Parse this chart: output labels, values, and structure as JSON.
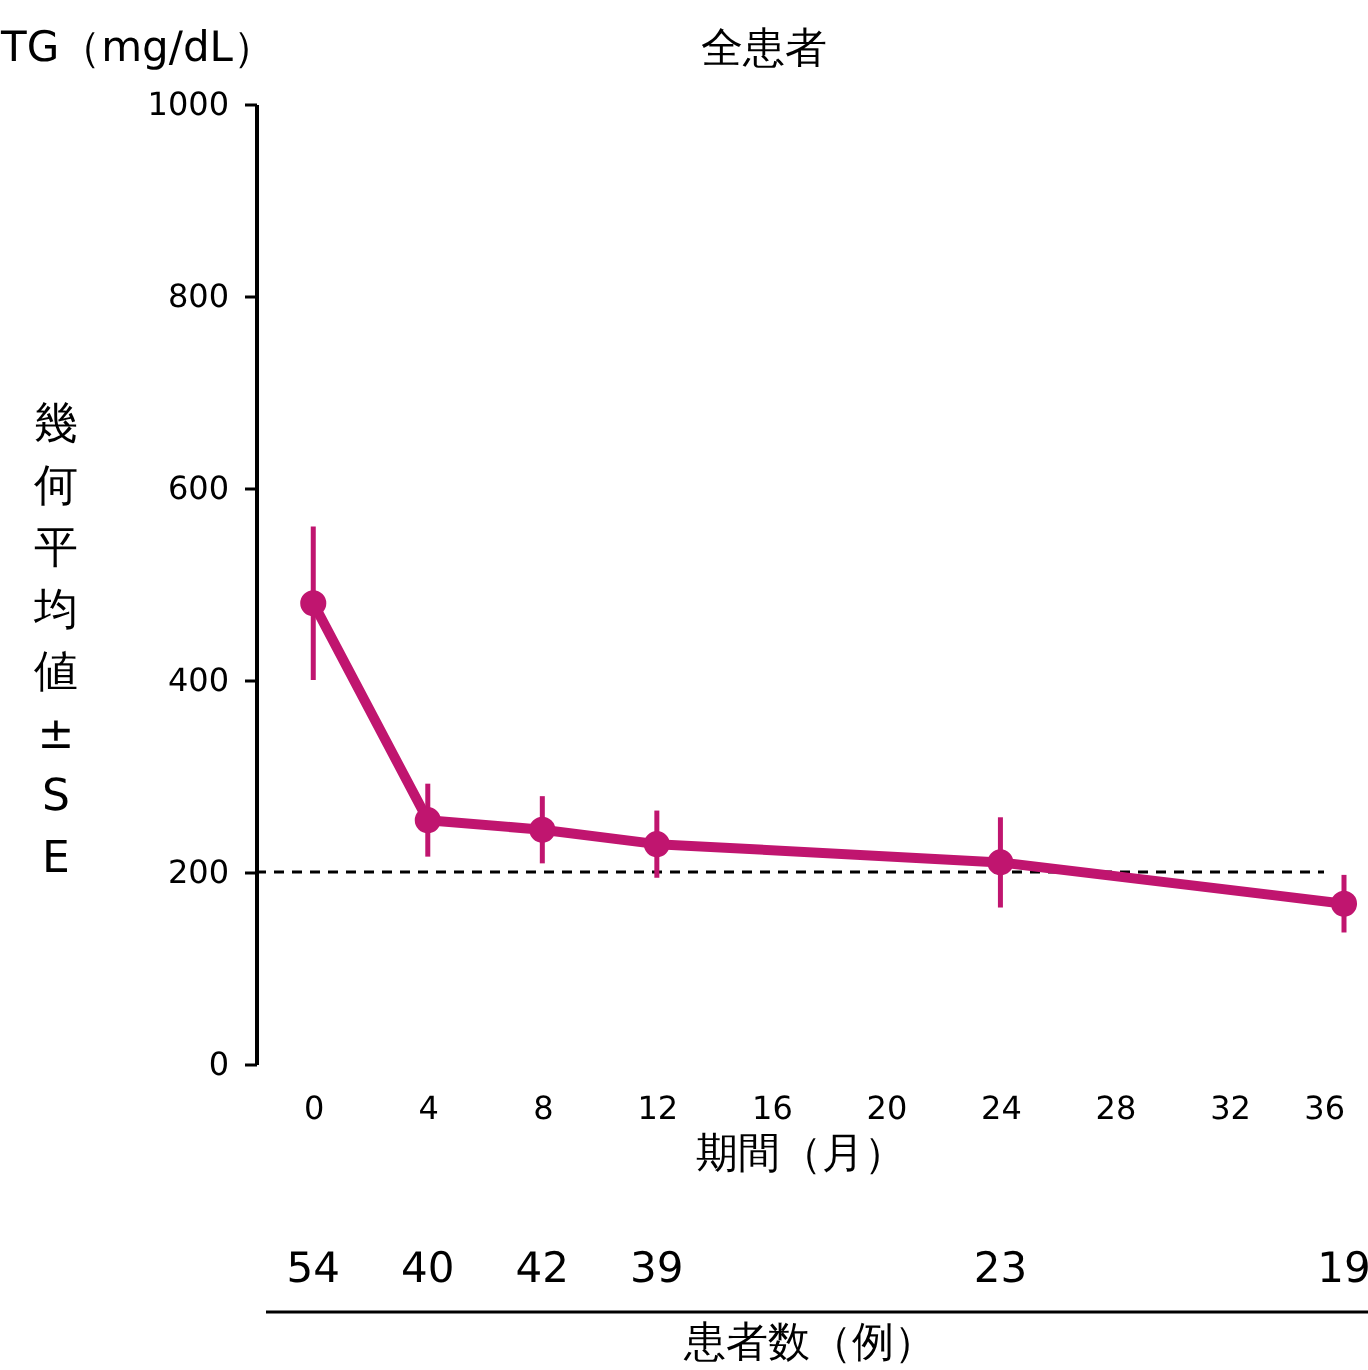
{
  "chart_data": {
    "type": "line",
    "title": "全患者",
    "xlabel": "期間（月）",
    "ylabel": "TG（mg/dL）",
    "x": [
      0,
      4,
      8,
      12,
      24,
      36
    ],
    "series": [
      {
        "color": "#c0156f",
        "values": [
          480,
          254,
          244,
          229,
          210,
          167
        ],
        "errors": [
          80,
          38,
          35,
          35,
          47,
          30
        ]
      }
    ],
    "xlim": [
      -2,
      36
    ],
    "xticks": [
      0,
      4,
      8,
      12,
      16,
      20,
      24,
      28,
      32,
      36
    ],
    "ylim": [
      0,
      1000
    ],
    "yticks": [
      0,
      200,
      400,
      600,
      800,
      1000
    ],
    "grid": false,
    "marker": "circle",
    "line_style": "solid",
    "ref_lines": [
      {
        "axis": "y",
        "value": 200,
        "color": "#000000",
        "line_style": "dashed"
      }
    ],
    "annotations": [
      "幾何平均値±SE",
      "54",
      "40",
      "42",
      "39",
      "23",
      "19",
      "患者数（例）"
    ]
  }
}
